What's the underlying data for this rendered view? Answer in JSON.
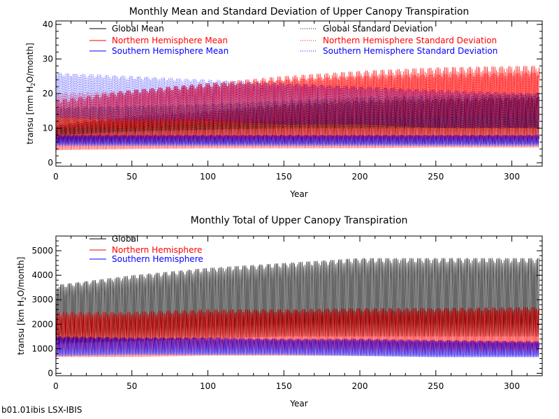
{
  "footer": "b01.01ibis LSX-IBIS",
  "chart_data": [
    {
      "type": "line",
      "title": "Monthly Mean and Standard Deviation of Upper Canopy Transpiration",
      "xlabel": "Year",
      "ylabel_main": "transu [mm H",
      "ylabel_sub": "2",
      "ylabel_tail": "O/month]",
      "xlim": [
        0,
        320
      ],
      "ylim": [
        -1,
        41
      ],
      "xticks": [
        0,
        50,
        100,
        150,
        200,
        250,
        300
      ],
      "yticks": [
        0,
        10,
        20,
        30,
        40
      ],
      "legend_position": "top",
      "series": [
        {
          "name": "Global Mean",
          "color": "#000000",
          "style": "solid",
          "points": [
            [
              0,
              5.5,
              11
            ],
            [
              50,
              5.5,
              13.5
            ],
            [
              100,
              5.5,
              15
            ],
            [
              150,
              5.5,
              17
            ],
            [
              200,
              5.5,
              18
            ],
            [
              250,
              5.5,
              18.5
            ],
            [
              318,
              5.5,
              19
            ]
          ]
        },
        {
          "name": "Northern Hemisphere Mean",
          "color": "#ff0000",
          "style": "solid",
          "points": [
            [
              0,
              3.5,
              18
            ],
            [
              50,
              3.8,
              21
            ],
            [
              100,
              4,
              23
            ],
            [
              150,
              4,
              25
            ],
            [
              200,
              4,
              26.5
            ],
            [
              250,
              4.2,
              27.5
            ],
            [
              318,
              4.2,
              28
            ]
          ]
        },
        {
          "name": "Southern Hemisphere Mean",
          "color": "#0000ff",
          "style": "solid",
          "points": [
            [
              0,
              5,
              8
            ],
            [
              50,
              5,
              8
            ],
            [
              100,
              5,
              8
            ],
            [
              150,
              5,
              8
            ],
            [
              200,
              5,
              8
            ],
            [
              250,
              5,
              8
            ],
            [
              318,
              5,
              8
            ]
          ]
        },
        {
          "name": "Global Standard Deviation",
          "color": "#000000",
          "style": "dotted",
          "points": [
            [
              0,
              8,
              16
            ],
            [
              50,
              9,
              16.5
            ],
            [
              100,
              9.5,
              17
            ],
            [
              150,
              10,
              18
            ],
            [
              200,
              10,
              19
            ],
            [
              250,
              10,
              19.5
            ],
            [
              318,
              10,
              20
            ]
          ]
        },
        {
          "name": "Northern Hemisphere Standard Deviation",
          "color": "#ff0000",
          "style": "dotted",
          "points": [
            [
              0,
              10,
              20
            ],
            [
              50,
              10,
              21
            ],
            [
              100,
              11,
              22.5
            ],
            [
              150,
              12,
              24
            ],
            [
              200,
              13,
              25
            ],
            [
              250,
              13,
              25.5
            ],
            [
              318,
              13,
              26
            ]
          ]
        },
        {
          "name": "Southern Hemisphere Standard Deviation",
          "color": "#0000ff",
          "style": "dotted",
          "points": [
            [
              0,
              13,
              26
            ],
            [
              50,
              12,
              25
            ],
            [
              100,
              12,
              24
            ],
            [
              150,
              11,
              23
            ],
            [
              200,
              11,
              22
            ],
            [
              250,
              10,
              21
            ],
            [
              318,
              10,
              20
            ]
          ]
        }
      ]
    },
    {
      "type": "line",
      "title": "Monthly Total of Upper Canopy Transpiration",
      "xlabel": "Year",
      "ylabel_main": "transu [km H",
      "ylabel_sub": "2",
      "ylabel_tail": "O/month]",
      "xlim": [
        0,
        320
      ],
      "ylim": [
        -100,
        5600
      ],
      "xticks": [
        0,
        50,
        100,
        150,
        200,
        250,
        300
      ],
      "yticks": [
        0,
        1000,
        2000,
        3000,
        4000,
        5000
      ],
      "legend_position": "top-left",
      "series": [
        {
          "name": "Global",
          "color": "#000000",
          "style": "solid",
          "points": [
            [
              0,
              1200,
              3600
            ],
            [
              50,
              1300,
              4000
            ],
            [
              100,
              1400,
              4300
            ],
            [
              150,
              1500,
              4500
            ],
            [
              200,
              1500,
              4700
            ],
            [
              250,
              1500,
              4700
            ],
            [
              318,
              1500,
              4700
            ]
          ]
        },
        {
          "name": "Northern Hemisphere",
          "color": "#ff0000",
          "style": "solid",
          "points": [
            [
              0,
              650,
              2500
            ],
            [
              50,
              650,
              2500
            ],
            [
              100,
              700,
              2600
            ],
            [
              150,
              700,
              2600
            ],
            [
              200,
              700,
              2650
            ],
            [
              250,
              700,
              2650
            ],
            [
              318,
              700,
              2700
            ]
          ]
        },
        {
          "name": "Southern Hemisphere",
          "color": "#0000ff",
          "style": "solid",
          "points": [
            [
              0,
              700,
              1500
            ],
            [
              50,
              750,
              1450
            ],
            [
              100,
              750,
              1450
            ],
            [
              150,
              750,
              1400
            ],
            [
              200,
              700,
              1400
            ],
            [
              250,
              650,
              1350
            ],
            [
              318,
              650,
              1300
            ]
          ]
        }
      ]
    }
  ]
}
